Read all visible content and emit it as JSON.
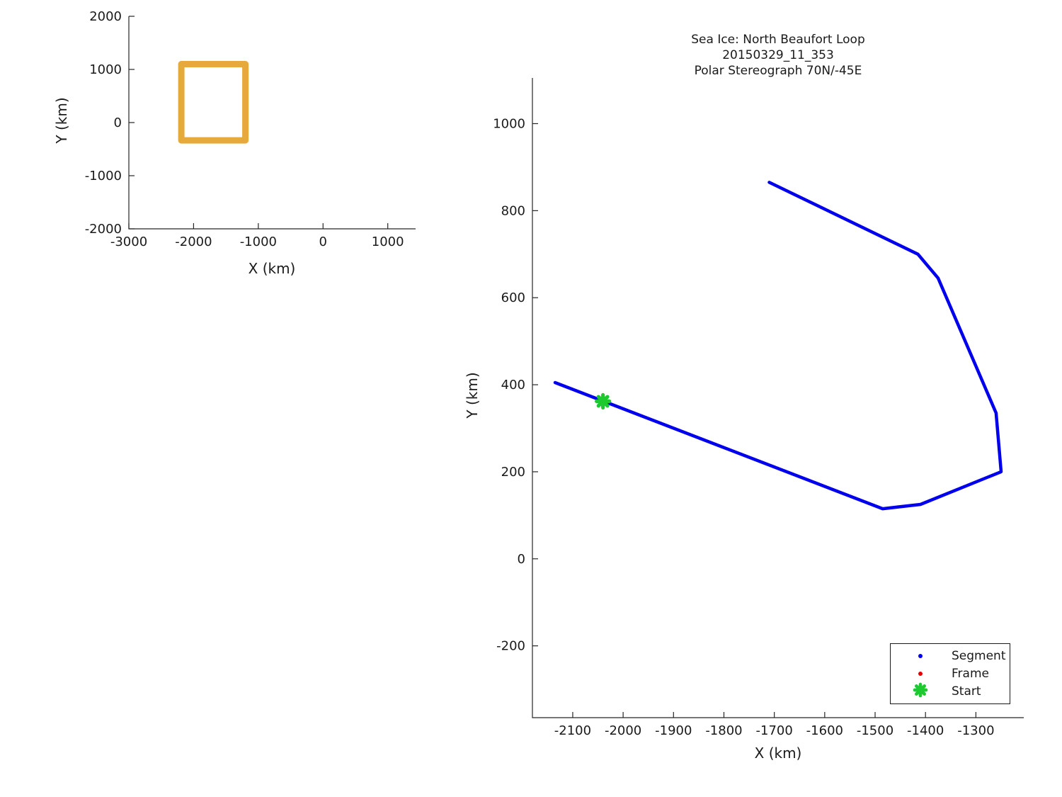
{
  "figure": {
    "background": "#ffffff",
    "text_color": "#1a1a1a",
    "axis_color": "#262626"
  },
  "chart_data": [
    {
      "id": "overview",
      "type": "line",
      "title": "",
      "xlabel": "X (km)",
      "ylabel": "Y (km)",
      "xlim": [
        -3000,
        1430
      ],
      "ylim": [
        -2000,
        2000
      ],
      "xticks": [
        -3000,
        -2000,
        -1000,
        0,
        1000
      ],
      "yticks": [
        -2000,
        -1000,
        0,
        1000,
        2000
      ],
      "grid": false,
      "legend": null,
      "series": [
        {
          "name": "loop-outline",
          "color": "#E8A93C",
          "linewidth": 9,
          "closed": true,
          "points": [
            [
              -2190,
              -335
            ],
            [
              -1200,
              -335
            ],
            [
              -1200,
              1100
            ],
            [
              -2190,
              1100
            ]
          ]
        }
      ]
    },
    {
      "id": "main",
      "type": "line",
      "title_lines": [
        "Sea Ice: North Beaufort Loop",
        "20150329_11_353",
        "Polar Stereograph 70N/-45E"
      ],
      "xlabel": "X (km)",
      "ylabel": "Y (km)",
      "xlim": [
        -2180,
        -1205
      ],
      "ylim": [
        -365,
        1105
      ],
      "xticks": [
        -2100,
        -2000,
        -1900,
        -1800,
        -1700,
        -1600,
        -1500,
        -1400,
        -1300
      ],
      "yticks": [
        -200,
        0,
        200,
        400,
        600,
        800,
        1000
      ],
      "grid": false,
      "series": [
        {
          "name": "segment-track",
          "legend": "Segment",
          "color": "#0000EE",
          "linewidth": 4.5,
          "closed": false,
          "points": [
            [
              -1710,
              865
            ],
            [
              -1415,
              700
            ],
            [
              -1375,
              645
            ],
            [
              -1260,
              335
            ],
            [
              -1250,
              200
            ],
            [
              -1410,
              125
            ],
            [
              -1485,
              115
            ],
            [
              -2135,
              405
            ]
          ]
        },
        {
          "name": "start-marker",
          "legend": "Start",
          "color": "#1EC92F",
          "marker": "burst",
          "points": [
            [
              -2040,
              362
            ]
          ]
        }
      ],
      "legend": {
        "position": "lower right",
        "entries": [
          {
            "label": "Segment",
            "marker": "dot",
            "color": "#0000EE"
          },
          {
            "label": "Frame",
            "marker": "dot",
            "color": "#E60000"
          },
          {
            "label": "Start",
            "marker": "burst",
            "color": "#1EC92F"
          }
        ]
      }
    }
  ]
}
